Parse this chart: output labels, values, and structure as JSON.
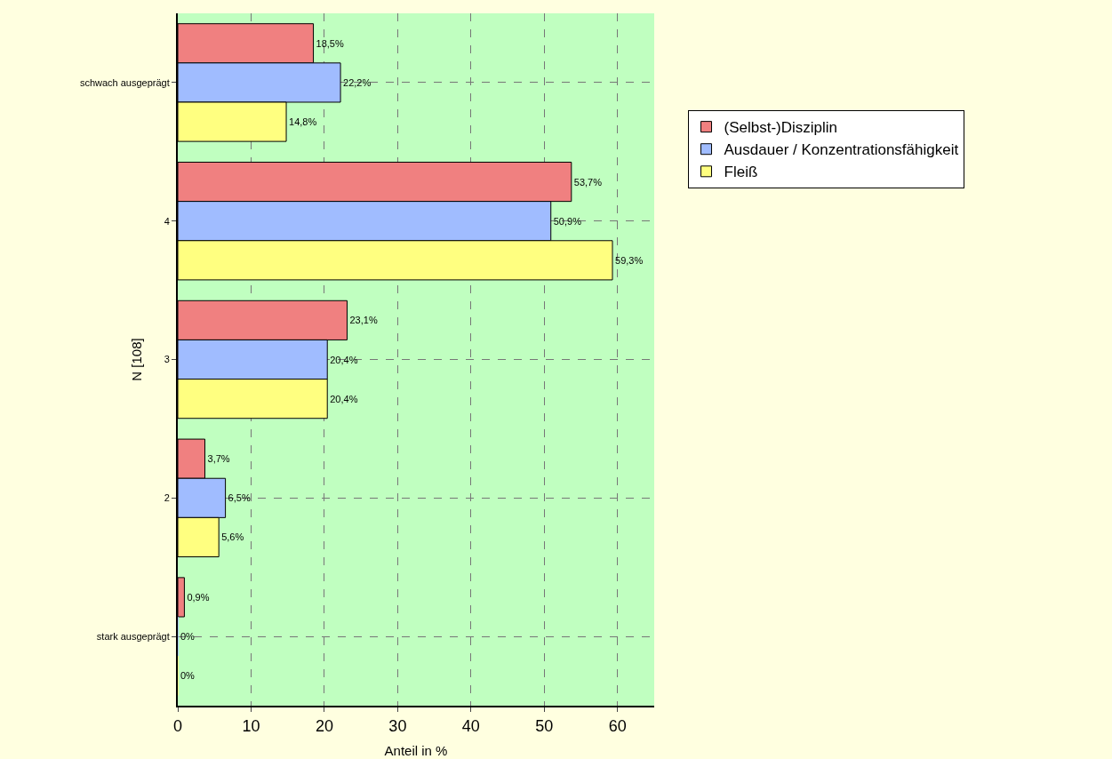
{
  "chart_data": {
    "type": "bar",
    "orientation": "horizontal",
    "xlabel": "Anteil in %",
    "ylabel": "N [108]",
    "categories": [
      "schwach ausgeprägt",
      "4",
      "3",
      "2",
      "stark ausgeprägt"
    ],
    "series": [
      {
        "name": "(Selbst-)Disziplin",
        "color": "#f08080",
        "values": [
          18.5,
          53.7,
          23.1,
          3.7,
          0.9
        ],
        "value_labels": [
          "18,5%",
          "53,7%",
          "23,1%",
          "3,7%",
          "0,9%"
        ]
      },
      {
        "name": "Ausdauer / Konzentrationsfähigkeit",
        "color": "#a0bcff",
        "values": [
          22.2,
          50.9,
          20.4,
          6.5,
          0
        ],
        "value_labels": [
          "22,2%",
          "50,9%",
          "20,4%",
          "6,5%",
          "0%"
        ]
      },
      {
        "name": "Fleiß",
        "color": "#ffff80",
        "values": [
          14.8,
          59.3,
          20.4,
          5.6,
          0
        ],
        "value_labels": [
          "14,8%",
          "59,3%",
          "20,4%",
          "5,6%",
          "0%"
        ]
      }
    ],
    "xlim": [
      0,
      65
    ],
    "xticks": [
      0,
      10,
      20,
      30,
      40,
      50,
      60
    ],
    "grid": true,
    "legend": "top right"
  }
}
